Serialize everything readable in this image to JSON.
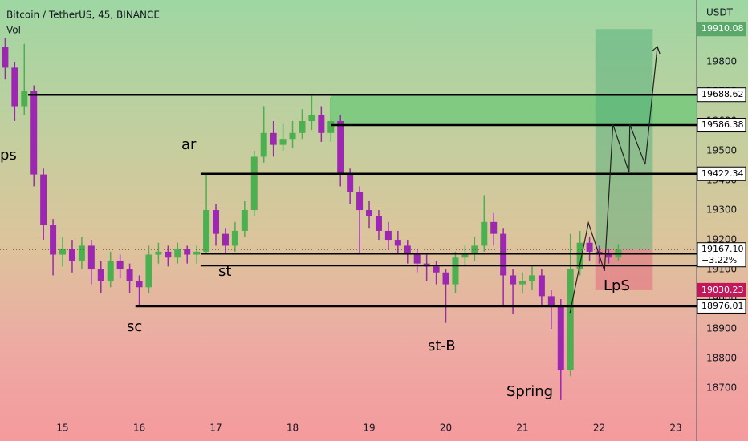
{
  "chart_data": {
    "type": "candlestick",
    "title": "Bitcoin / TetherUS, 45, BINANCE",
    "subtitle": "Vol",
    "y_axis_label": "USDT",
    "up_color": "#4caf50",
    "down_color": "#9c27b0",
    "x": [
      14.25,
      14.375,
      14.5,
      14.625,
      14.75,
      14.875,
      15,
      15.125,
      15.25,
      15.375,
      15.5,
      15.625,
      15.75,
      15.875,
      16,
      16.125,
      16.25,
      16.375,
      16.5,
      16.625,
      16.75,
      16.875,
      17,
      17.125,
      17.25,
      17.375,
      17.5,
      17.625,
      17.75,
      17.875,
      18,
      18.125,
      18.25,
      18.375,
      18.5,
      18.625,
      18.75,
      18.875,
      19,
      19.125,
      19.25,
      19.375,
      19.5,
      19.625,
      19.75,
      19.875,
      20,
      20.125,
      20.25,
      20.375,
      20.5,
      20.625,
      20.75,
      20.875,
      21,
      21.125,
      21.25,
      21.375,
      21.5,
      21.625,
      21.75,
      21.875,
      22,
      22.125,
      22.25
    ],
    "open": [
      19850,
      19780,
      19650,
      19700,
      19420,
      19250,
      19150,
      19170,
      19130,
      19180,
      19100,
      19060,
      19130,
      19100,
      19060,
      19040,
      19150,
      19160,
      19140,
      19170,
      19150,
      19160,
      19300,
      19220,
      19180,
      19230,
      19300,
      19480,
      19560,
      19520,
      19540,
      19560,
      19600,
      19620,
      19560,
      19600,
      19420,
      19360,
      19300,
      19280,
      19230,
      19200,
      19180,
      19150,
      19120,
      19110,
      19090,
      19050,
      19140,
      19150,
      19180,
      19260,
      19220,
      19080,
      19050,
      19060,
      19080,
      19010,
      18980,
      18760,
      19100,
      19190,
      19160,
      19150,
      19140
    ],
    "high": [
      19880,
      19800,
      19860,
      19720,
      19440,
      19270,
      19210,
      19200,
      19210,
      19200,
      19130,
      19160,
      19150,
      19120,
      19080,
      19180,
      19190,
      19180,
      19190,
      19180,
      19180,
      19420,
      19320,
      19240,
      19260,
      19330,
      19500,
      19650,
      19600,
      19590,
      19600,
      19640,
      19690,
      19650,
      19680,
      19620,
      19440,
      19380,
      19330,
      19300,
      19260,
      19230,
      19200,
      19170,
      19150,
      19130,
      19100,
      19160,
      19180,
      19210,
      19350,
      19290,
      19240,
      19100,
      19090,
      19110,
      19100,
      19030,
      19000,
      19220,
      19230,
      19210,
      19180,
      19170,
      19185
    ],
    "low": [
      19740,
      19600,
      19620,
      19380,
      19200,
      19080,
      19110,
      19090,
      19100,
      19050,
      19020,
      19040,
      19070,
      19020,
      18976,
      19020,
      19120,
      19110,
      19120,
      19120,
      19120,
      19150,
      19180,
      19150,
      19160,
      19210,
      19280,
      19460,
      19480,
      19500,
      19510,
      19540,
      19570,
      19530,
      19530,
      19380,
      19320,
      19150,
      19240,
      19200,
      19170,
      19150,
      19120,
      19090,
      19060,
      19050,
      18920,
      19020,
      19110,
      19130,
      19160,
      19180,
      18980,
      18950,
      19020,
      19030,
      18980,
      18900,
      18660,
      18740,
      19080,
      19130,
      19120,
      19120,
      19130
    ],
    "close": [
      19780,
      19650,
      19700,
      19420,
      19250,
      19150,
      19170,
      19130,
      19180,
      19100,
      19060,
      19130,
      19100,
      19060,
      19040,
      19150,
      19160,
      19140,
      19170,
      19150,
      19160,
      19300,
      19220,
      19180,
      19230,
      19300,
      19480,
      19560,
      19520,
      19540,
      19560,
      19600,
      19620,
      19560,
      19600,
      19420,
      19360,
      19300,
      19280,
      19230,
      19200,
      19180,
      19150,
      19120,
      19110,
      19090,
      19050,
      19140,
      19150,
      19180,
      19260,
      19220,
      19080,
      19050,
      19060,
      19080,
      19010,
      18980,
      18760,
      19100,
      19190,
      19160,
      19150,
      19140,
      19167.1
    ],
    "xlim": [
      14.183,
      23.272
    ],
    "xticks": [
      15,
      16,
      17,
      18,
      19,
      20,
      21,
      22,
      23
    ],
    "ylim": [
      18603,
      20008
    ],
    "yticks": [
      18700,
      18800,
      18900,
      19000,
      19100,
      19200,
      19300,
      19400,
      19500,
      19600,
      19700,
      19800
    ],
    "levels": [
      {
        "value": 19910.08,
        "bg": "#5aa96a",
        "fg": "#ffffff"
      },
      {
        "value": 19688.62,
        "from": 14.55,
        "bg": "#ffffff",
        "fg": "#000000"
      },
      {
        "value": 19586.38,
        "from": 18.5,
        "bg": "#ffffff",
        "fg": "#000000"
      },
      {
        "value": 19422.34,
        "from": 16.8,
        "bg": "#ffffff",
        "fg": "#000000"
      },
      {
        "value": {
          "value": 19167.1,
          "label": "19167.10"
        },
        "note": "−3.22%",
        "dotted": true,
        "bg": "#ffffff",
        "fg": "#000000"
      },
      {
        "value": 19030.23,
        "bg": "#c2185b",
        "fg": "#ffffff"
      },
      {
        "value": 18976.01,
        "from": 15.95,
        "bg": "#ffffff",
        "fg": "#000000"
      }
    ],
    "lines": [
      {
        "value": 19153,
        "from": 16.8
      },
      {
        "value": 19113,
        "from": 16.8
      }
    ],
    "zones": [
      {
        "top": 19688.62,
        "bottom": 19586.38,
        "from": 18.5,
        "to": 23.272,
        "color": "rgba(110,200,120,0.75)"
      },
      {
        "top": 19910.08,
        "bottom": 19167.1,
        "from": 21.95,
        "to": 22.7,
        "color": "rgba(70,170,120,0.45)"
      },
      {
        "top": 19167.1,
        "bottom": 19030.23,
        "from": 21.95,
        "to": 22.7,
        "color": "rgba(230,60,110,0.35)"
      }
    ],
    "projection": {
      "x": [
        21.62,
        21.86,
        22.07,
        22.18,
        22.39,
        22.4,
        22.6,
        22.76
      ],
      "y": [
        18954,
        19257,
        19095,
        19589,
        19427,
        19589,
        19454,
        19851
      ]
    },
    "annotations": [
      "ps",
      "ar",
      "st",
      "sc",
      "st-B",
      "Spring",
      "LpS"
    ]
  }
}
